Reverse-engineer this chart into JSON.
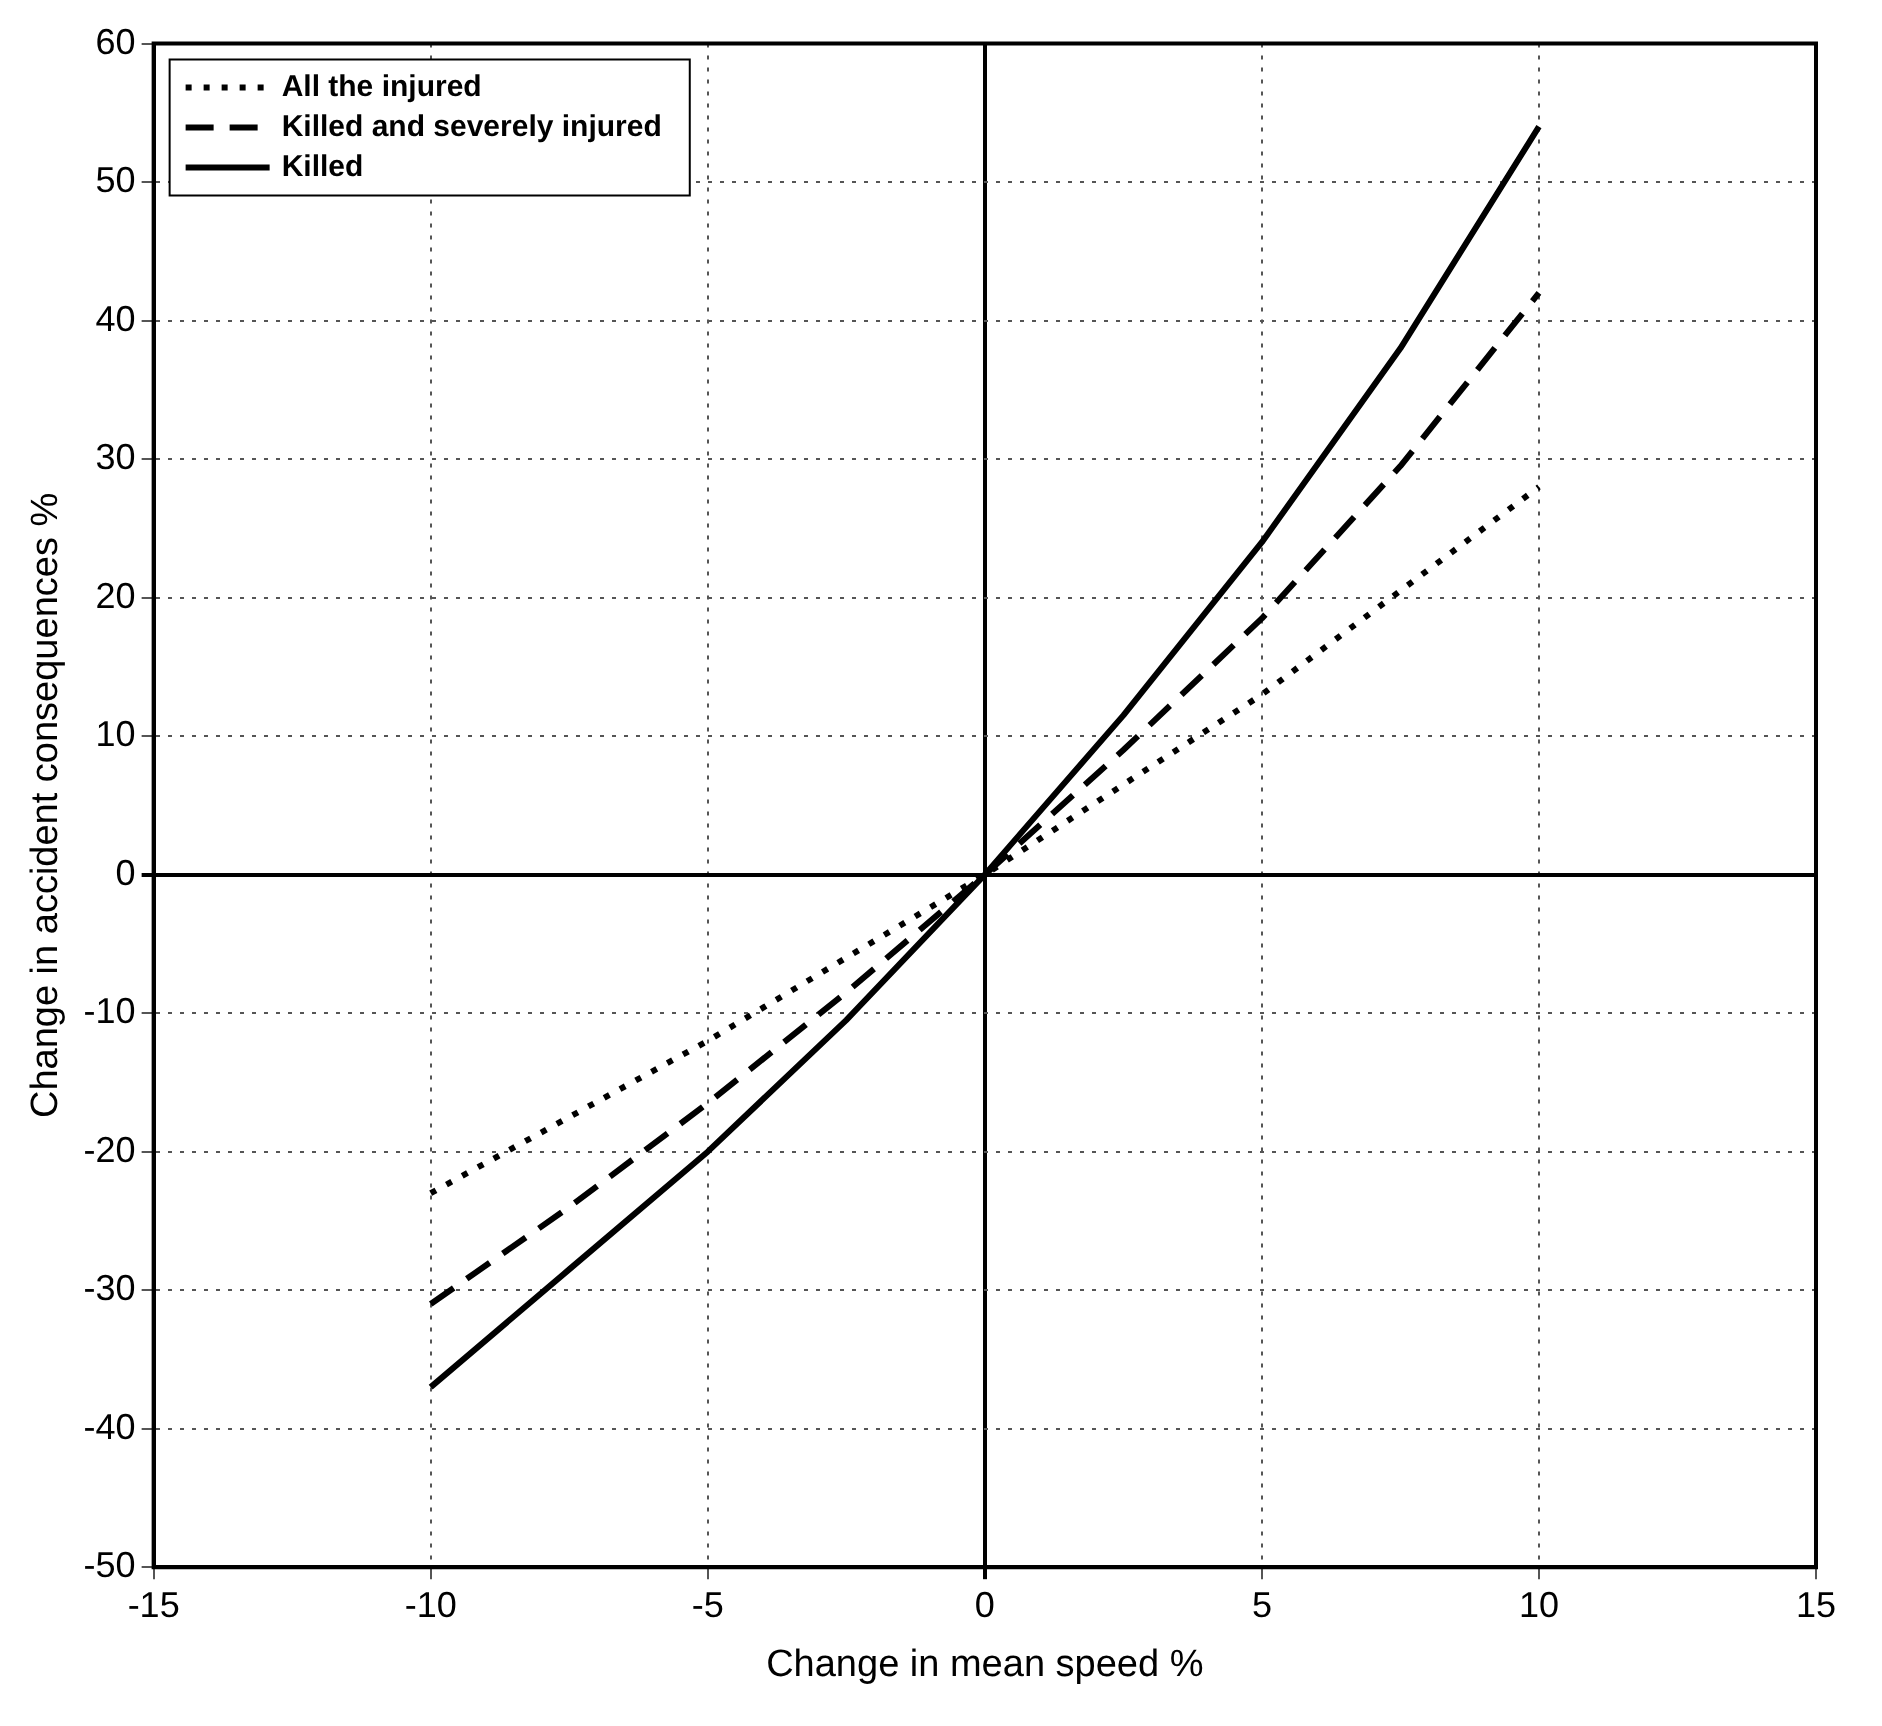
{
  "chart_data": {
    "type": "line",
    "xlabel": "Change in mean speed %",
    "ylabel": "Change in accident consequences %",
    "x": [
      -10,
      -7.5,
      -5,
      -2.5,
      0,
      2.5,
      5,
      7.5,
      10
    ],
    "series": [
      {
        "name": "All the injured",
        "color": "#000000",
        "line_style": "dotted",
        "values": [
          -23,
          -17.5,
          -12,
          -6,
          0,
          6.5,
          13,
          20.5,
          28
        ]
      },
      {
        "name": "Killed and severely injured",
        "color": "#000000",
        "line_style": "dashed",
        "values": [
          -31,
          -24,
          -16.5,
          -8.5,
          0,
          9,
          18.5,
          29.5,
          42
        ]
      },
      {
        "name": "Killed",
        "color": "#000000",
        "line_style": "solid",
        "values": [
          -37,
          -28.5,
          -20,
          -10.5,
          0,
          11.5,
          24,
          38,
          54
        ]
      }
    ],
    "xlim": [
      -15,
      15
    ],
    "xticks": [
      -15,
      -10,
      -5,
      0,
      5,
      10,
      15
    ],
    "ylim": [
      -50,
      60
    ],
    "yticks": [
      -50,
      -40,
      -30,
      -20,
      -10,
      0,
      10,
      20,
      30,
      40,
      50,
      60
    ],
    "grid": true,
    "legend": "top left",
    "marker": "none"
  }
}
